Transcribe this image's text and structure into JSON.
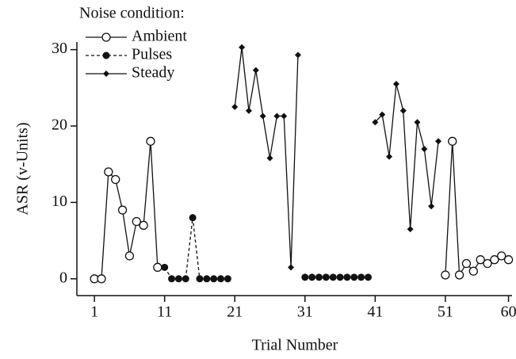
{
  "chart_data": {
    "type": "line",
    "legend_title": "Noise condition:",
    "xlabel": "Trial Number",
    "ylabel": "ASR (v-Units)",
    "x": [
      1,
      2,
      3,
      4,
      5,
      6,
      7,
      8,
      9,
      10,
      11,
      12,
      13,
      14,
      15,
      16,
      17,
      18,
      19,
      20,
      21,
      22,
      23,
      24,
      25,
      26,
      27,
      28,
      29,
      30,
      31,
      32,
      33,
      34,
      35,
      36,
      37,
      38,
      39,
      40,
      41,
      42,
      43,
      44,
      45,
      46,
      47,
      48,
      49,
      50,
      51,
      52,
      53,
      54,
      55,
      56,
      57,
      58,
      59,
      60
    ],
    "series": [
      {
        "name": "Ambient",
        "color": "#111111",
        "marker": "open-circle",
        "dash": false,
        "values": [
          0,
          0,
          14,
          13,
          9,
          3,
          7.5,
          7,
          18,
          1.5,
          null,
          null,
          null,
          null,
          null,
          null,
          null,
          null,
          null,
          null,
          null,
          null,
          null,
          null,
          null,
          null,
          null,
          null,
          null,
          null,
          null,
          null,
          null,
          null,
          null,
          null,
          null,
          null,
          null,
          null,
          null,
          null,
          null,
          null,
          null,
          null,
          null,
          null,
          null,
          null,
          0.5,
          18,
          0.5,
          2,
          1,
          2.5,
          2,
          2.5,
          3,
          2.5
        ]
      },
      {
        "name": "Pulses",
        "color": "#111111",
        "marker": "filled-circle",
        "dash": true,
        "values": [
          null,
          null,
          null,
          null,
          null,
          null,
          null,
          null,
          null,
          null,
          1.5,
          0,
          0,
          0,
          8,
          0,
          0,
          0,
          0,
          0,
          null,
          null,
          null,
          null,
          null,
          null,
          null,
          null,
          null,
          null,
          0.2,
          0.2,
          0.2,
          0.2,
          0.2,
          0.2,
          0.2,
          0.2,
          0.2,
          0.2,
          null,
          null,
          null,
          null,
          null,
          null,
          null,
          null,
          null,
          null,
          null,
          null,
          null,
          null,
          null,
          null,
          null,
          null,
          null,
          null
        ]
      },
      {
        "name": "Steady",
        "color": "#111111",
        "marker": "diamond",
        "dash": false,
        "values": [
          null,
          null,
          null,
          null,
          null,
          null,
          null,
          null,
          null,
          null,
          null,
          null,
          null,
          null,
          null,
          null,
          null,
          null,
          null,
          null,
          22.5,
          30.3,
          22,
          27.3,
          21.3,
          15.8,
          21.3,
          21.3,
          1.5,
          29.3,
          null,
          null,
          null,
          null,
          null,
          null,
          null,
          null,
          null,
          null,
          20.5,
          21.5,
          16,
          25.5,
          22,
          6.5,
          20.5,
          17,
          9.5,
          18,
          null,
          null,
          null,
          null,
          null,
          null,
          null,
          null,
          null,
          null
        ]
      }
    ],
    "xlim": [
      -1.5,
      60.5
    ],
    "xticks": [
      1,
      11,
      21,
      31,
      41,
      51,
      60
    ],
    "ylim": [
      -2.2,
      31
    ],
    "yticks": [
      0,
      10,
      20,
      30
    ]
  }
}
